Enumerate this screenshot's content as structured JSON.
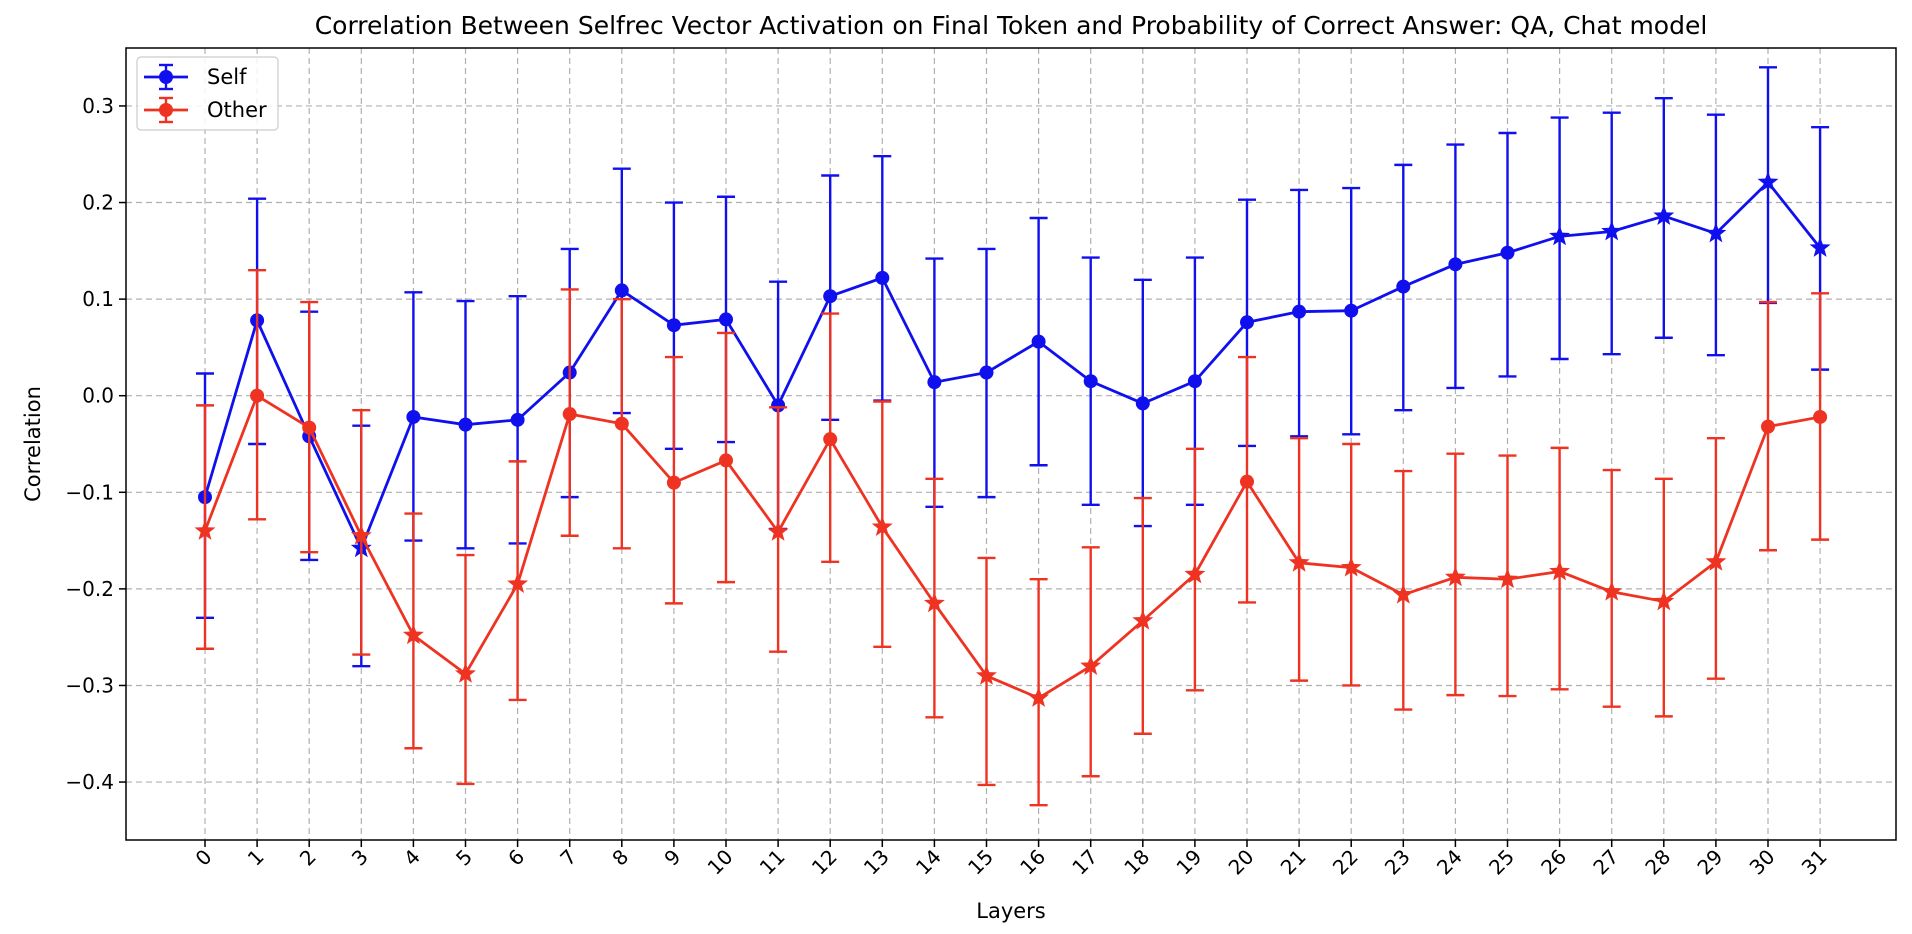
{
  "chart_data": {
    "type": "line",
    "title": "Correlation Between Selfrec Vector Activation on Final Token and Probability of Correct Answer: QA, Chat model",
    "xlabel": "Layers",
    "ylabel": "Correlation",
    "ylim": [
      -0.46,
      0.36
    ],
    "yticks": [
      -0.4,
      -0.3,
      -0.2,
      -0.1,
      0.0,
      0.1,
      0.2,
      0.3
    ],
    "ytick_labels": [
      "−0.4",
      "−0.3",
      "−0.2",
      "−0.1",
      "0.0",
      "0.1",
      "0.2",
      "0.3"
    ],
    "grid": true,
    "legend_position": "top-left",
    "x": [
      0,
      1,
      2,
      3,
      4,
      5,
      6,
      7,
      8,
      9,
      10,
      11,
      12,
      13,
      14,
      15,
      16,
      17,
      18,
      19,
      20,
      21,
      22,
      23,
      24,
      25,
      26,
      27,
      28,
      29,
      30,
      31
    ],
    "x_tick_labels": [
      "0",
      "1",
      "2",
      "3",
      "4",
      "5",
      "6",
      "7",
      "8",
      "9",
      "10",
      "11",
      "12",
      "13",
      "14",
      "15",
      "16",
      "17",
      "18",
      "19",
      "20",
      "21",
      "22",
      "23",
      "24",
      "25",
      "26",
      "27",
      "28",
      "29",
      "30",
      "31"
    ],
    "series": [
      {
        "name": "Self",
        "color": "#1010ee",
        "values": [
          -0.105,
          0.078,
          -0.042,
          -0.158,
          -0.022,
          -0.03,
          -0.025,
          0.024,
          0.109,
          0.073,
          0.079,
          -0.01,
          0.103,
          0.122,
          0.014,
          0.024,
          0.056,
          0.015,
          -0.008,
          0.015,
          0.076,
          0.087,
          0.088,
          0.113,
          0.136,
          0.148,
          0.165,
          0.17,
          0.186,
          0.168,
          0.221,
          0.153
        ],
        "err_upper": [
          0.023,
          0.204,
          0.087,
          -0.031,
          0.107,
          0.098,
          0.103,
          0.152,
          0.235,
          0.2,
          0.206,
          0.118,
          0.228,
          0.248,
          0.142,
          0.152,
          0.184,
          0.143,
          0.12,
          0.143,
          0.203,
          0.213,
          0.215,
          0.239,
          0.26,
          0.272,
          0.288,
          0.293,
          0.308,
          0.291,
          0.34,
          0.278
        ],
        "err_lower": [
          -0.23,
          -0.05,
          -0.17,
          -0.28,
          -0.15,
          -0.158,
          -0.153,
          -0.105,
          -0.018,
          -0.055,
          -0.048,
          -0.138,
          -0.025,
          -0.005,
          -0.115,
          -0.105,
          -0.072,
          -0.113,
          -0.135,
          -0.113,
          -0.052,
          -0.042,
          -0.04,
          -0.015,
          0.008,
          0.02,
          0.038,
          0.043,
          0.06,
          0.042,
          0.096,
          0.027
        ],
        "markers": [
          "circle",
          "circle",
          "circle",
          "star",
          "circle",
          "circle",
          "circle",
          "circle",
          "circle",
          "circle",
          "circle",
          "circle",
          "circle",
          "circle",
          "circle",
          "circle",
          "circle",
          "circle",
          "circle",
          "circle",
          "circle",
          "circle",
          "circle",
          "circle",
          "circle",
          "circle",
          "star",
          "star",
          "star",
          "star",
          "star",
          "star"
        ]
      },
      {
        "name": "Other",
        "color": "#ee3322",
        "values": [
          -0.14,
          0.0,
          -0.033,
          -0.145,
          -0.248,
          -0.288,
          -0.195,
          -0.019,
          -0.029,
          -0.09,
          -0.067,
          -0.141,
          -0.045,
          -0.136,
          -0.215,
          -0.29,
          -0.313,
          -0.28,
          -0.233,
          -0.185,
          -0.089,
          -0.173,
          -0.178,
          -0.206,
          -0.188,
          -0.19,
          -0.182,
          -0.203,
          -0.213,
          -0.172,
          -0.032,
          -0.022
        ],
        "err_upper": [
          -0.01,
          0.13,
          0.097,
          -0.015,
          -0.122,
          -0.165,
          -0.068,
          0.11,
          0.1,
          0.04,
          0.065,
          -0.012,
          0.085,
          -0.006,
          -0.086,
          -0.168,
          -0.19,
          -0.157,
          -0.106,
          -0.055,
          0.04,
          -0.044,
          -0.05,
          -0.078,
          -0.06,
          -0.062,
          -0.054,
          -0.077,
          -0.086,
          -0.044,
          0.097,
          0.106
        ],
        "err_lower": [
          -0.262,
          -0.128,
          -0.162,
          -0.268,
          -0.365,
          -0.402,
          -0.315,
          -0.145,
          -0.158,
          -0.215,
          -0.193,
          -0.265,
          -0.172,
          -0.26,
          -0.333,
          -0.403,
          -0.424,
          -0.394,
          -0.35,
          -0.305,
          -0.214,
          -0.295,
          -0.3,
          -0.325,
          -0.31,
          -0.311,
          -0.304,
          -0.322,
          -0.332,
          -0.293,
          -0.16,
          -0.149
        ],
        "markers": [
          "star",
          "circle",
          "circle",
          "star",
          "star",
          "star",
          "star",
          "circle",
          "circle",
          "circle",
          "circle",
          "star",
          "circle",
          "star",
          "star",
          "star",
          "star",
          "star",
          "star",
          "star",
          "circle",
          "star",
          "star",
          "star",
          "star",
          "star",
          "star",
          "star",
          "star",
          "star",
          "circle",
          "circle"
        ]
      }
    ]
  }
}
